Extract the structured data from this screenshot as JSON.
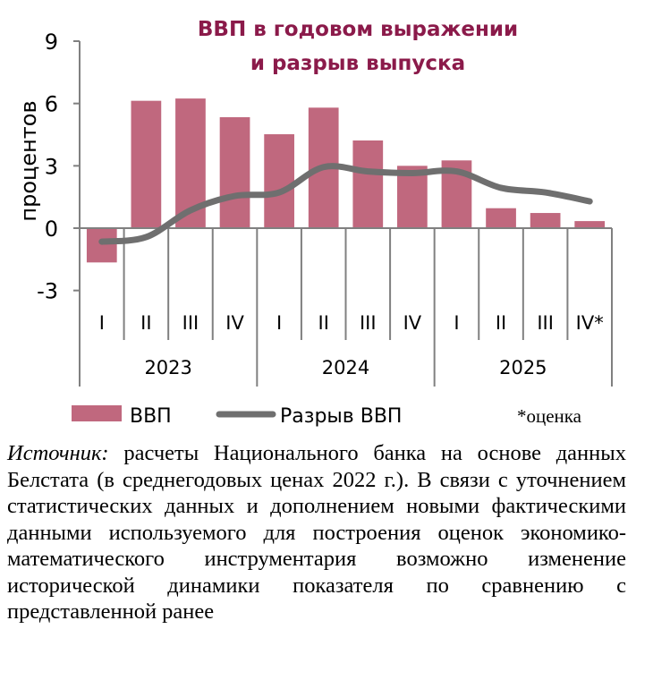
{
  "chart_data": {
    "type": "bar+line",
    "title": "ВВП в годовом выражении и разрыв выпуска",
    "ylabel": "процентов",
    "ylim": [
      -3,
      9
    ],
    "yticks": [
      "9",
      "6",
      "3",
      "0",
      "-3"
    ],
    "categories": [
      "I",
      "II",
      "III",
      "IV",
      "I",
      "II",
      "III",
      "IV",
      "I",
      "II",
      "III",
      "IV*"
    ],
    "years": [
      "2023",
      "2024",
      "2025"
    ],
    "series": [
      {
        "name": "ВВП",
        "type": "bar",
        "color": "#c0687e",
        "values": [
          -1.65,
          6.13,
          6.24,
          5.34,
          4.52,
          5.8,
          4.22,
          3.0,
          3.26,
          0.96,
          0.73,
          0.34
        ]
      },
      {
        "name": "Разрыв ВВП",
        "type": "line",
        "color": "#6f6f6f",
        "values": [
          -0.65,
          -0.43,
          0.86,
          1.55,
          1.72,
          2.94,
          2.73,
          2.65,
          2.73,
          1.94,
          1.72,
          1.29
        ]
      }
    ],
    "note": "*оценка",
    "grid": false,
    "legend": "bottom"
  },
  "colors": {
    "title": "#8b1a4a",
    "axis": "#808080"
  },
  "source": {
    "label": "Источник:",
    "text": " расчеты Национального банка на основе данных Белстата (в среднегодовых ценах 2022 г.). В связи с уточнением статистических данных и дополнением новыми фактическими данными используемого для построения оценок экономико-математического инструментария возможно изменение исторической динамики показателя по сравнению с представленной ранее"
  }
}
